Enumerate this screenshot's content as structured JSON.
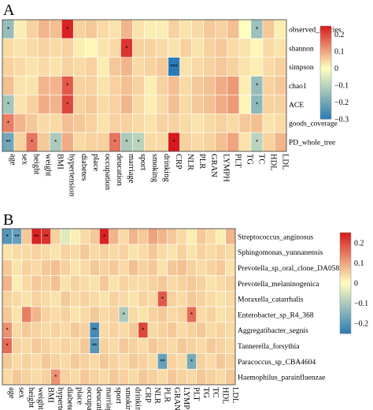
{
  "panels": [
    {
      "label": "A"
    },
    {
      "label": "B"
    }
  ],
  "colorscale": {
    "negative": "#2c7bb6",
    "mid": "#ffffbf",
    "positive": "#d7191c"
  },
  "chart_data": [
    {
      "type": "heatmap",
      "panel": "A",
      "x": [
        "age",
        "sex",
        "height",
        "weight",
        "BMI",
        "hypertension",
        "diabetes",
        "place",
        "occupation",
        "deucation",
        "marriage",
        "sport",
        "smoking",
        "drinking",
        "CRP",
        "NLR",
        "PLR",
        "GRAN",
        "LYMPH",
        "PLT",
        "TG",
        "TC",
        "HDL",
        "LDL"
      ],
      "y": [
        "observed_species",
        "shannon",
        "simpson",
        "chao1",
        "ACE",
        "goods_coverage",
        "PD_whole_tree"
      ],
      "values": [
        [
          -0.15,
          0.02,
          0.05,
          0.08,
          0.07,
          0.24,
          0.05,
          0.06,
          0.04,
          0.03,
          0.08,
          0.03,
          0.02,
          0.02,
          0.05,
          0.03,
          0.04,
          0.06,
          0.05,
          0.07,
          0.0,
          -0.14,
          0.06,
          0.02
        ],
        [
          0.04,
          0.03,
          0.04,
          0.05,
          0.04,
          0.05,
          0.02,
          0.01,
          0.03,
          0.04,
          0.22,
          0.05,
          0.05,
          0.04,
          0.03,
          0.05,
          0.03,
          0.05,
          0.06,
          0.04,
          0.03,
          0.01,
          0.04,
          0.03
        ],
        [
          0.05,
          0.04,
          0.03,
          0.04,
          0.03,
          0.05,
          0.04,
          0.05,
          0.02,
          0.06,
          0.08,
          0.04,
          0.05,
          0.06,
          -0.3,
          0.03,
          0.04,
          0.05,
          0.06,
          0.05,
          0.03,
          0.02,
          0.04,
          0.05
        ],
        [
          0.07,
          0.03,
          0.03,
          0.08,
          0.08,
          0.18,
          0.05,
          0.05,
          0.03,
          0.05,
          0.07,
          0.05,
          0.02,
          0.05,
          0.07,
          0.04,
          0.06,
          0.07,
          0.09,
          0.11,
          0.02,
          -0.15,
          0.05,
          0.06
        ],
        [
          -0.13,
          0.03,
          0.05,
          0.09,
          0.08,
          0.2,
          0.05,
          0.06,
          0.04,
          0.05,
          0.08,
          0.04,
          0.02,
          0.04,
          0.07,
          0.04,
          0.06,
          0.07,
          0.09,
          0.11,
          0.01,
          -0.16,
          0.05,
          0.05
        ],
        [
          0.14,
          0.08,
          0.06,
          0.04,
          0.04,
          0.07,
          0.06,
          0.05,
          0.03,
          0.05,
          0.05,
          0.04,
          0.03,
          0.05,
          0.05,
          0.04,
          0.03,
          0.04,
          0.05,
          0.04,
          0.06,
          0.07,
          0.03,
          0.04
        ],
        [
          -0.2,
          0.05,
          0.15,
          0.06,
          -0.12,
          0.09,
          0.04,
          0.05,
          0.05,
          0.15,
          -0.12,
          -0.1,
          0.04,
          0.04,
          0.28,
          0.05,
          0.04,
          0.05,
          0.07,
          0.1,
          0.03,
          -0.1,
          0.05,
          0.08
        ]
      ],
      "stars": [
        [
          1,
          0,
          0,
          0,
          0,
          1,
          0,
          0,
          0,
          0,
          0,
          0,
          0,
          0,
          0,
          0,
          0,
          0,
          0,
          0,
          0,
          1,
          0,
          0
        ],
        [
          0,
          0,
          0,
          0,
          0,
          0,
          0,
          0,
          0,
          0,
          1,
          0,
          0,
          0,
          0,
          0,
          0,
          0,
          0,
          0,
          0,
          0,
          0,
          0
        ],
        [
          0,
          0,
          0,
          0,
          0,
          0,
          0,
          0,
          0,
          0,
          0,
          0,
          0,
          0,
          3,
          0,
          0,
          0,
          0,
          0,
          0,
          0,
          0,
          0
        ],
        [
          0,
          0,
          0,
          0,
          0,
          1,
          0,
          0,
          0,
          0,
          0,
          0,
          0,
          0,
          0,
          0,
          0,
          0,
          0,
          0,
          0,
          1,
          0,
          0
        ],
        [
          1,
          0,
          0,
          0,
          0,
          1,
          0,
          0,
          0,
          0,
          0,
          0,
          0,
          0,
          0,
          0,
          0,
          0,
          0,
          0,
          0,
          1,
          0,
          0
        ],
        [
          1,
          0,
          0,
          0,
          0,
          0,
          0,
          0,
          0,
          0,
          0,
          0,
          0,
          0,
          0,
          0,
          0,
          0,
          0,
          0,
          0,
          0,
          0,
          0
        ],
        [
          2,
          0,
          1,
          0,
          1,
          0,
          0,
          0,
          0,
          1,
          1,
          1,
          0,
          0,
          1,
          0,
          0,
          0,
          0,
          0,
          0,
          1,
          0,
          0
        ]
      ],
      "colorbar": {
        "min": -0.3,
        "max": 0.25,
        "ticks": [
          0.2,
          0.1,
          0,
          -0.1,
          -0.2,
          -0.3
        ],
        "tick_labels": [
          "0.2",
          "0.1",
          "0",
          "−0.1",
          "−0.2",
          "−0.3"
        ]
      }
    },
    {
      "type": "heatmap",
      "panel": "B",
      "x": [
        "age",
        "sex",
        "height",
        "weight",
        "BMI",
        "hypertension",
        "diabetes",
        "place",
        "occupation",
        "deucation",
        "marriage",
        "sport",
        "smoking",
        "drinking",
        "CRP",
        "NLR",
        "PLR",
        "GRAN",
        "LYMPH",
        "PLT",
        "TG",
        "TC",
        "HDL",
        "LDL"
      ],
      "y": [
        "Streptococcus_anginosus",
        "Sphingomonas_yunnanensis",
        "Prevotella_sp_oral_clone_DA058",
        "Prevotella_melaninogenica",
        "Moraxella_catarrhalis",
        "Enterobacter_sp_R4_368",
        "Aggregatibacter_segnis",
        "Tannerella_forsythia",
        "Paracoccus_sp_CBA4604",
        "Haemophilus_parainfluenzae"
      ],
      "values": [
        [
          -0.2,
          -0.18,
          0.06,
          0.24,
          0.22,
          0.05,
          -0.04,
          0.02,
          0.04,
          0.06,
          0.24,
          0.08,
          0.04,
          0.08,
          0.06,
          0.1,
          0.08,
          0.06,
          0.04,
          0.02,
          0.06,
          0.04,
          0.02,
          0.08
        ],
        [
          0.03,
          0.04,
          0.04,
          0.05,
          0.04,
          0.03,
          0.05,
          0.04,
          0.06,
          0.04,
          0.05,
          0.04,
          0.05,
          0.03,
          0.04,
          0.06,
          0.04,
          0.03,
          0.05,
          0.03,
          0.05,
          0.04,
          0.05,
          0.04
        ],
        [
          0.06,
          0.03,
          0.05,
          0.04,
          0.06,
          0.07,
          0.05,
          0.03,
          0.04,
          0.06,
          0.05,
          0.06,
          0.04,
          0.07,
          0.05,
          0.06,
          0.03,
          0.06,
          0.07,
          0.05,
          0.04,
          0.05,
          0.06,
          0.03
        ],
        [
          0.08,
          0.02,
          0.04,
          0.06,
          0.05,
          0.07,
          0.03,
          0.05,
          0.04,
          0.03,
          0.06,
          0.03,
          0.05,
          0.04,
          0.04,
          0.05,
          0.06,
          0.04,
          0.05,
          0.06,
          0.05,
          0.03,
          0.04,
          0.05
        ],
        [
          0.05,
          0.04,
          0.03,
          0.05,
          0.04,
          0.03,
          0.06,
          0.04,
          0.05,
          0.04,
          0.03,
          0.05,
          0.04,
          0.03,
          0.05,
          0.04,
          0.18,
          0.05,
          0.04,
          0.06,
          0.05,
          0.04,
          0.03,
          0.04
        ],
        [
          0.06,
          0.03,
          0.14,
          0.08,
          0.05,
          0.04,
          0.05,
          0.03,
          0.04,
          0.06,
          0.04,
          0.05,
          -0.1,
          0.04,
          0.03,
          0.05,
          0.06,
          0.04,
          0.05,
          0.16,
          0.04,
          0.05,
          0.03,
          0.04
        ],
        [
          0.12,
          0.04,
          0.06,
          0.05,
          0.04,
          0.05,
          0.04,
          0.06,
          0.05,
          -0.22,
          0.04,
          0.05,
          0.04,
          0.06,
          0.2,
          0.04,
          0.05,
          0.06,
          0.04,
          0.05,
          0.06,
          0.04,
          0.05,
          0.04
        ],
        [
          0.16,
          0.05,
          0.04,
          0.06,
          0.05,
          0.04,
          0.05,
          0.04,
          0.06,
          -0.2,
          0.05,
          0.04,
          0.06,
          0.05,
          0.04,
          0.06,
          0.05,
          0.04,
          0.06,
          0.05,
          0.04,
          0.06,
          0.05,
          0.04
        ],
        [
          0.06,
          0.04,
          0.05,
          0.04,
          0.06,
          0.05,
          0.04,
          0.06,
          0.05,
          0.04,
          0.06,
          0.05,
          0.04,
          0.06,
          0.05,
          0.04,
          -0.18,
          0.05,
          0.04,
          -0.16,
          0.05,
          0.04,
          0.06,
          0.05
        ],
        [
          0.04,
          0.06,
          0.05,
          0.04,
          0.05,
          0.12,
          0.05,
          0.04,
          0.06,
          0.05,
          0.04,
          0.06,
          0.05,
          0.04,
          0.06,
          0.05,
          0.04,
          0.06,
          0.05,
          0.04,
          0.06,
          0.05,
          0.04,
          0.06
        ]
      ],
      "stars": [
        [
          1,
          2,
          0,
          2,
          2,
          0,
          0,
          0,
          0,
          0,
          1,
          0,
          0,
          0,
          0,
          0,
          0,
          0,
          0,
          0,
          0,
          0,
          0,
          0
        ],
        [
          0,
          0,
          0,
          0,
          0,
          0,
          0,
          0,
          0,
          0,
          0,
          0,
          0,
          0,
          0,
          0,
          0,
          0,
          0,
          0,
          0,
          0,
          0,
          0
        ],
        [
          0,
          0,
          0,
          0,
          0,
          0,
          0,
          0,
          0,
          0,
          0,
          0,
          0,
          0,
          0,
          0,
          0,
          0,
          0,
          0,
          0,
          0,
          0,
          0
        ],
        [
          0,
          0,
          0,
          0,
          0,
          0,
          0,
          0,
          0,
          0,
          0,
          0,
          0,
          0,
          0,
          0,
          0,
          0,
          0,
          0,
          0,
          0,
          0,
          0
        ],
        [
          0,
          0,
          0,
          0,
          0,
          0,
          0,
          0,
          0,
          0,
          0,
          0,
          0,
          0,
          0,
          0,
          1,
          0,
          0,
          0,
          0,
          0,
          0,
          0
        ],
        [
          0,
          0,
          0,
          0,
          0,
          0,
          0,
          0,
          0,
          0,
          0,
          0,
          1,
          0,
          0,
          0,
          0,
          0,
          0,
          1,
          0,
          0,
          0,
          0
        ],
        [
          1,
          0,
          0,
          0,
          0,
          0,
          0,
          0,
          0,
          2,
          0,
          0,
          0,
          0,
          1,
          0,
          0,
          0,
          0,
          0,
          0,
          0,
          0,
          0
        ],
        [
          1,
          0,
          0,
          0,
          0,
          0,
          0,
          0,
          0,
          2,
          0,
          0,
          0,
          0,
          0,
          0,
          0,
          0,
          0,
          0,
          0,
          0,
          0,
          0
        ],
        [
          0,
          0,
          0,
          0,
          0,
          0,
          0,
          0,
          0,
          0,
          0,
          0,
          0,
          0,
          0,
          0,
          2,
          0,
          0,
          1,
          0,
          0,
          0,
          0
        ],
        [
          0,
          0,
          0,
          0,
          0,
          1,
          0,
          0,
          0,
          0,
          0,
          0,
          0,
          0,
          0,
          0,
          0,
          0,
          0,
          0,
          0,
          0,
          0,
          0
        ]
      ],
      "colorbar": {
        "min": -0.25,
        "max": 0.25,
        "ticks": [
          0.2,
          0.1,
          0,
          -0.1,
          -0.2
        ],
        "tick_labels": [
          "0.2",
          "0.1",
          "0",
          "−0.1",
          "−0.2"
        ]
      }
    }
  ]
}
